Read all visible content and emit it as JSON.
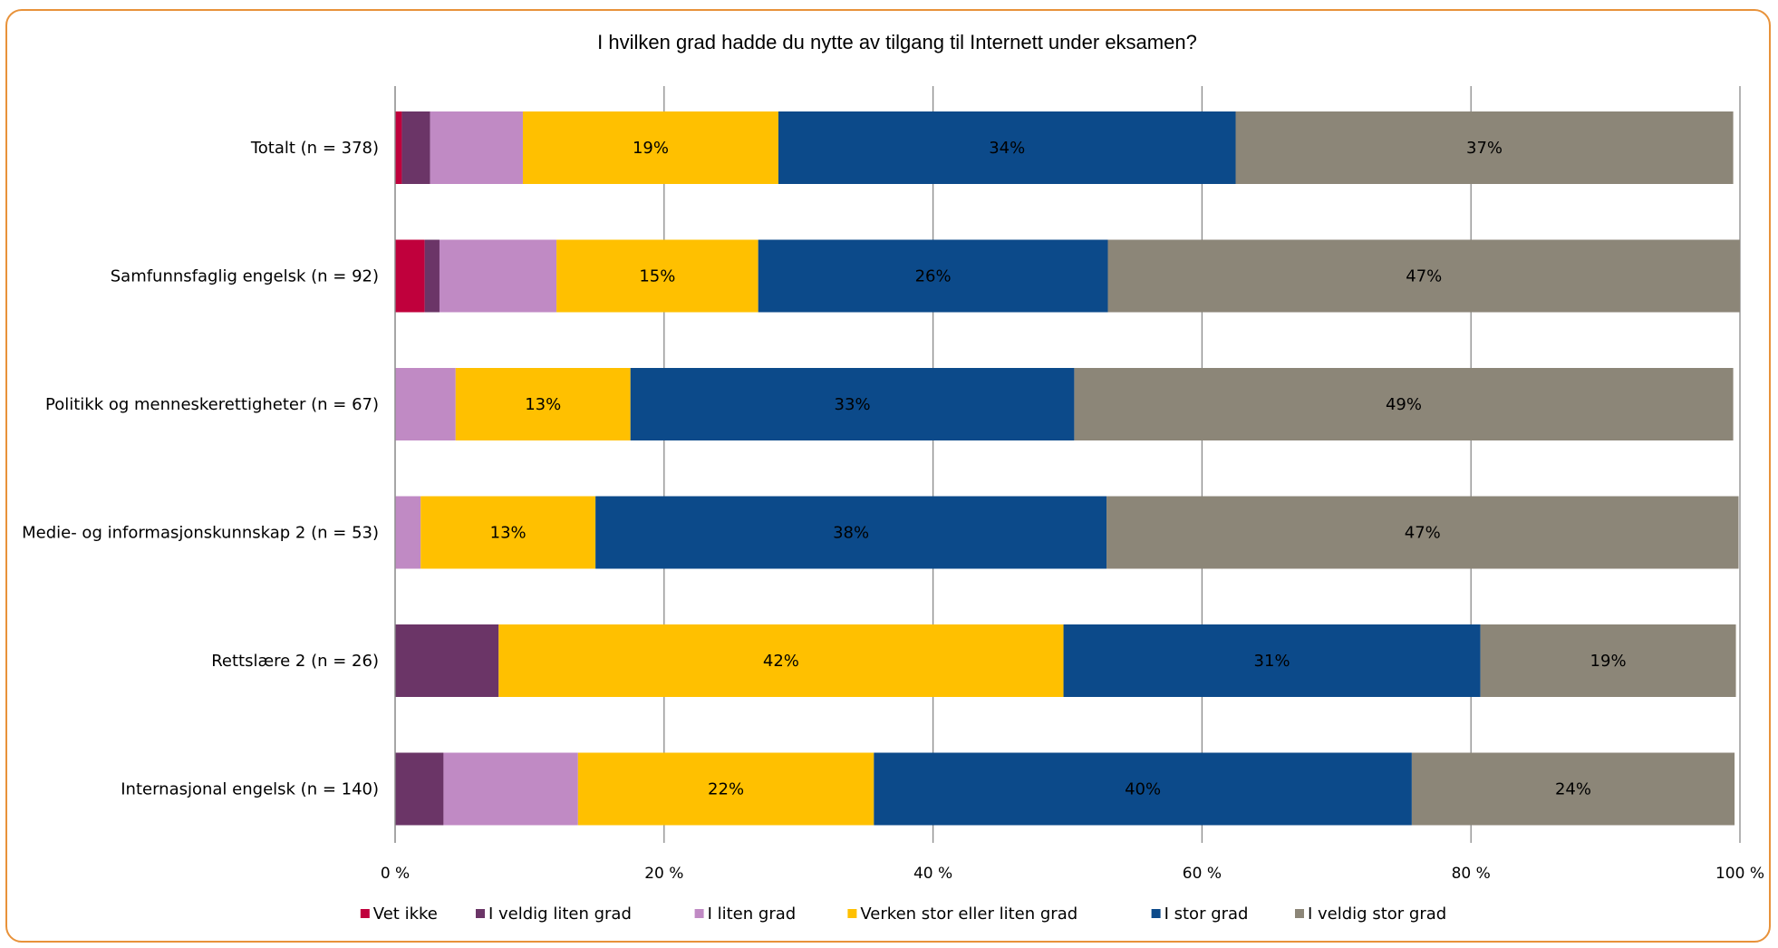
{
  "chart_data": {
    "type": "bar",
    "orientation": "horizontal",
    "stacked": true,
    "percent_scale": true,
    "title": "I hvilken grad hadde du nytte av tilgang til Internett under eksamen?",
    "categories": [
      "Totalt (n = 378)",
      "Samfunnsfaglig engelsk (n = 92)",
      "Politikk og menneskerettigheter (n = 67)",
      "Medie- og informasjonskunnskap 2 (n = 53)",
      "Rettslære 2 (n = 26)",
      "Internasjonal engelsk (n = 140)"
    ],
    "series": [
      {
        "name": "Vet ikke",
        "color": "#c0003c",
        "values": [
          0.5,
          2.2,
          0,
          0,
          0,
          0
        ]
      },
      {
        "name": "I veldig liten grad",
        "color": "#6b3567",
        "values": [
          2.1,
          1.1,
          0,
          0,
          7.7,
          3.6
        ]
      },
      {
        "name": "I liten grad",
        "color": "#c08ac4",
        "values": [
          6.9,
          8.7,
          4.5,
          1.9,
          0,
          10.0
        ]
      },
      {
        "name": "Verken stor eller liten grad",
        "color": "#ffc000",
        "values": [
          19,
          15,
          13,
          13,
          42,
          22
        ]
      },
      {
        "name": "I stor grad",
        "color": "#0c4a8a",
        "values": [
          34,
          26,
          33,
          38,
          31,
          40
        ]
      },
      {
        "name": "I veldig stor grad",
        "color": "#8c8678",
        "values": [
          37,
          47,
          49,
          47,
          19,
          24
        ]
      }
    ],
    "data_labels": [
      [
        "",
        "",
        "",
        "19%",
        "34%",
        "37%"
      ],
      [
        "",
        "",
        "",
        "15%",
        "26%",
        "47%"
      ],
      [
        "",
        "",
        "",
        "13%",
        "33%",
        "49%"
      ],
      [
        "",
        "",
        "",
        "13%",
        "38%",
        "47%"
      ],
      [
        "",
        "",
        "",
        "42%",
        "31%",
        "19%"
      ],
      [
        "",
        "",
        "",
        "22%",
        "40%",
        "24%"
      ]
    ],
    "xlim": [
      0,
      100
    ],
    "x_ticks": [
      "0 %",
      "20 %",
      "40 %",
      "60 %",
      "80 %",
      "100 %"
    ],
    "grid": "vertical",
    "legend_position": "bottom"
  }
}
